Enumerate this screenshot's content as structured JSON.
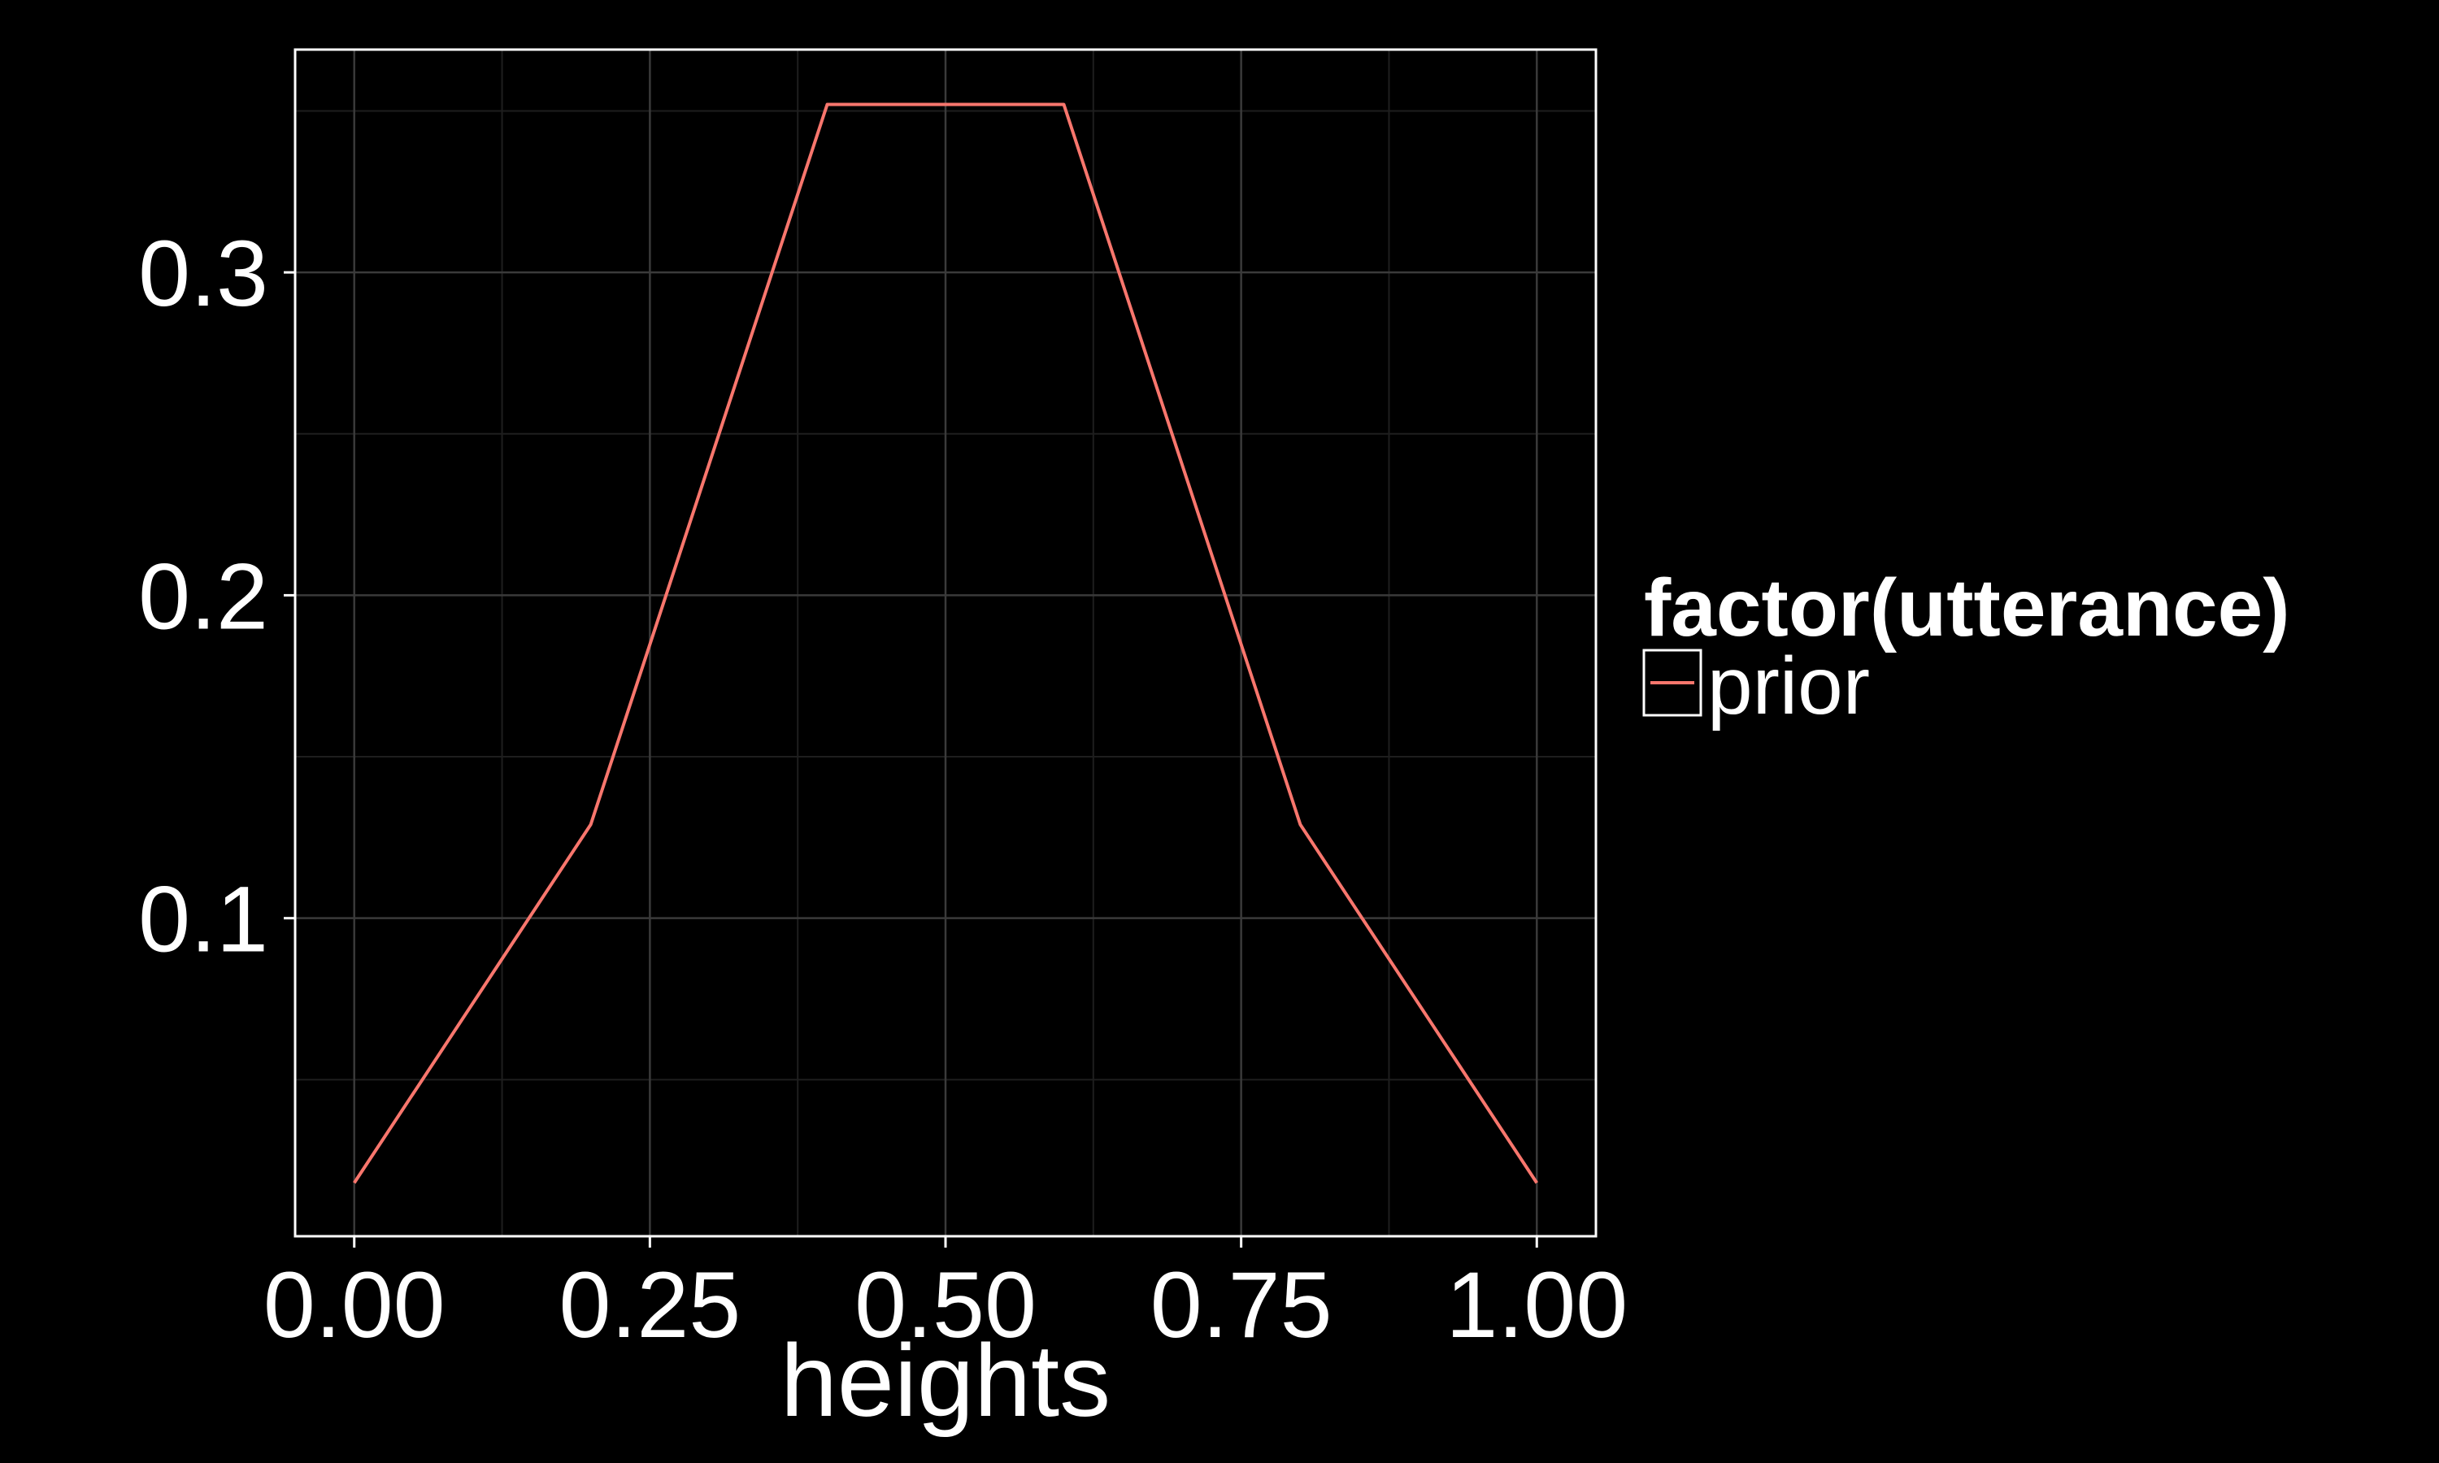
{
  "chart_data": {
    "type": "line",
    "xlabel": "heights",
    "ylabel": "",
    "xlim": [
      -0.05,
      1.05
    ],
    "ylim": [
      0.0015,
      0.369
    ],
    "x_ticks": [
      0.0,
      0.25,
      0.5,
      0.75,
      1.0
    ],
    "x_tick_labels": [
      "0.00",
      "0.25",
      "0.50",
      "0.75",
      "1.00"
    ],
    "x_minor_ticks": [
      0.125,
      0.375,
      0.625,
      0.875
    ],
    "y_ticks": [
      0.1,
      0.2,
      0.3
    ],
    "y_tick_labels": [
      "0.1",
      "0.2",
      "0.3"
    ],
    "y_minor_ticks": [
      0.05,
      0.15,
      0.25,
      0.35
    ],
    "grid": true,
    "legend": {
      "title": "factor(utterance)",
      "placement": "right",
      "entries": [
        {
          "label": "prior",
          "color": "#F8766D"
        }
      ]
    },
    "series": [
      {
        "name": "prior",
        "color": "#F8766D",
        "x": [
          0.0,
          0.2,
          0.4,
          0.6,
          0.8,
          1.0
        ],
        "y": [
          0.018,
          0.129,
          0.352,
          0.352,
          0.129,
          0.018
        ]
      }
    ]
  },
  "colors": {
    "background": "#000000",
    "panel_border": "#ffffff",
    "grid_major": "#3a3a3a",
    "grid_minor": "#1e1e1e",
    "text": "#ffffff"
  }
}
